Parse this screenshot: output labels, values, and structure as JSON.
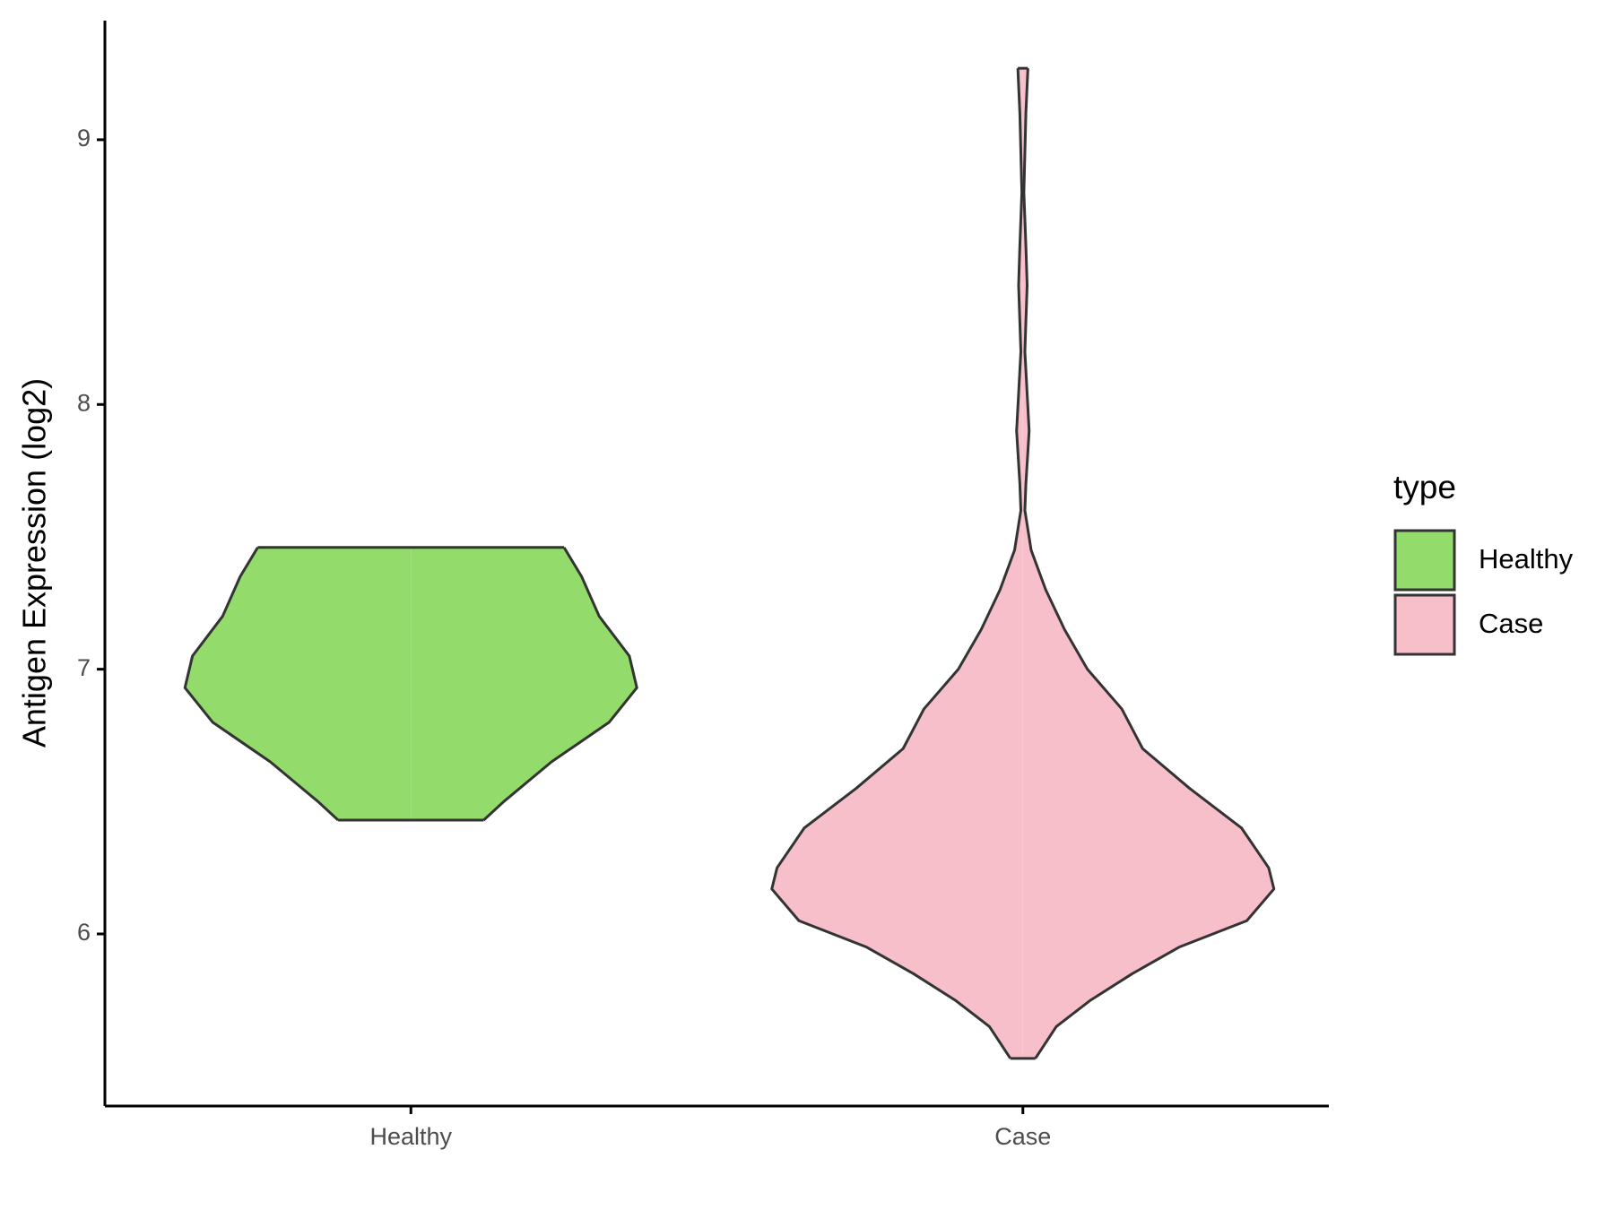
{
  "chart_data": {
    "type": "violin",
    "y_label": "Antigen Expression (log2)",
    "categories": [
      "Healthy",
      "Case"
    ],
    "legend_title": "type",
    "legend": "right",
    "ylim": [
      5.35,
      9.45
    ],
    "yticks": [
      6,
      7,
      8,
      9
    ],
    "series": [
      {
        "name": "Healthy",
        "color": "#93dc6b",
        "values": [
          7.46,
          7.35,
          7.2,
          7.05,
          6.93,
          6.8,
          6.65,
          6.5,
          6.43
        ],
        "widths": [
          0.61,
          0.68,
          0.75,
          0.87,
          0.9,
          0.79,
          0.56,
          0.37,
          0.29
        ]
      },
      {
        "name": "Case",
        "color": "#f7bfca",
        "values": [
          9.27,
          9.1,
          8.8,
          8.6,
          8.45,
          8.2,
          7.9,
          7.7,
          7.6,
          7.45,
          7.3,
          7.15,
          7.0,
          6.85,
          6.7,
          6.55,
          6.4,
          6.25,
          6.17,
          6.05,
          5.95,
          5.85,
          5.75,
          5.65,
          5.53
        ],
        "widths": [
          0.02,
          0.012,
          0.004,
          0.012,
          0.017,
          0.008,
          0.025,
          0.012,
          0.008,
          0.033,
          0.091,
          0.166,
          0.257,
          0.394,
          0.477,
          0.664,
          0.871,
          0.979,
          1,
          0.892,
          0.622,
          0.436,
          0.27,
          0.133,
          0.05
        ]
      }
    ]
  }
}
